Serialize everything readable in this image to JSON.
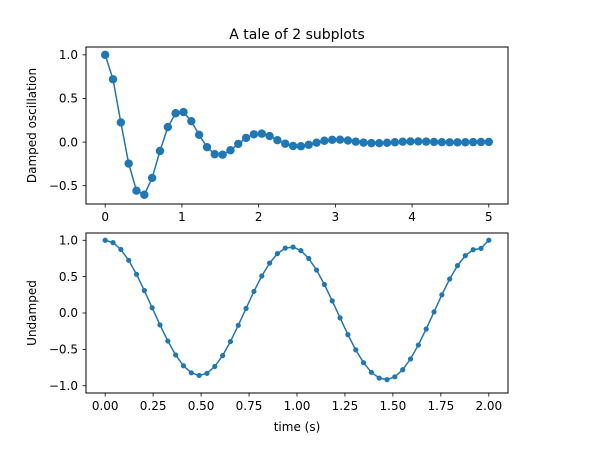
{
  "figure": {
    "title": "A tale of 2 subplots",
    "line_color": "#1f77b4"
  },
  "chart_data": [
    {
      "type": "line",
      "name": "damped",
      "title": "A tale of 2 subplots",
      "xlabel": "",
      "ylabel": "Damped oscillation",
      "xlim": [
        -0.25,
        5.25
      ],
      "ylim": [
        -0.71,
        1.09
      ],
      "xticks": [
        0,
        1,
        2,
        3,
        4,
        5
      ],
      "xtick_labels": [
        "0",
        "1",
        "2",
        "3",
        "4",
        "5"
      ],
      "yticks": [
        -0.5,
        0.0,
        0.5,
        1.0
      ],
      "ytick_labels": [
        "−0.5",
        "0.0",
        "0.5",
        "1.0"
      ],
      "marker": "o",
      "grid": false,
      "x_start": 0,
      "x_step": 0.1020408,
      "y": [
        1.0,
        0.7199,
        0.225,
        -0.2459,
        -0.5574,
        -0.6038,
        -0.4113,
        -0.1021,
        0.1719,
        0.3303,
        0.3437,
        0.2396,
        0.0835,
        -0.0582,
        -0.1393,
        -0.1445,
        -0.0938,
        -0.0211,
        0.0479,
        0.0893,
        0.0969,
        0.0686,
        0.0216,
        -0.019,
        -0.0449,
        -0.0476,
        -0.0309,
        -0.0069,
        0.0151,
        0.0261,
        0.0271,
        0.0181,
        0.0048,
        -0.0063,
        -0.0121,
        -0.0126,
        -0.0083,
        -0.0019,
        0.0041,
        0.0071,
        0.0076,
        0.0052,
        0.0015,
        -0.0016,
        -0.0031,
        -0.0033,
        -0.0022,
        -0.0005,
        0.0011,
        0.0019
      ]
    },
    {
      "type": "line",
      "name": "undamped",
      "title": "",
      "xlabel": "time (s)",
      "ylabel": "Undamped",
      "xlim": [
        -0.1,
        2.1
      ],
      "ylim": [
        -1.1,
        1.1
      ],
      "xticks": [
        0.0,
        0.25,
        0.5,
        0.75,
        1.0,
        1.25,
        1.5,
        1.75,
        2.0
      ],
      "xtick_labels": [
        "0.00",
        "0.25",
        "0.50",
        "0.75",
        "1.00",
        "1.25",
        "1.50",
        "1.75",
        "2.00"
      ],
      "yticks": [
        -1.0,
        -0.5,
        0.0,
        0.5,
        1.0
      ],
      "ytick_labels": [
        "−1.0",
        "−0.5",
        "0.0",
        "0.5",
        "1.0"
      ],
      "marker": ".",
      "grid": false,
      "x_start": 0,
      "x_step": 0.0408163,
      "y": [
        1.0,
        0.9679,
        0.8738,
        0.7247,
        0.532,
        0.3091,
        0.0722,
        -0.1646,
        -0.3856,
        -0.5767,
        -0.7256,
        -0.8226,
        -0.8588,
        -0.8297,
        -0.7347,
        -0.5859,
        -0.3924,
        -0.1691,
        0.0636,
        0.2963,
        0.5087,
        0.6859,
        0.8169,
        0.8925,
        0.9065,
        0.8577,
        0.7495,
        0.5905,
        0.3917,
        0.167,
        -0.067,
        -0.2971,
        -0.5069,
        -0.6831,
        -0.8154,
        -0.8948,
        -0.9162,
        -0.8772,
        -0.7802,
        -0.6316,
        -0.4408,
        -0.2201,
        0.015,
        0.25,
        0.4673,
        0.6513,
        0.7889,
        0.8701,
        0.8888,
        1.0
      ]
    }
  ]
}
